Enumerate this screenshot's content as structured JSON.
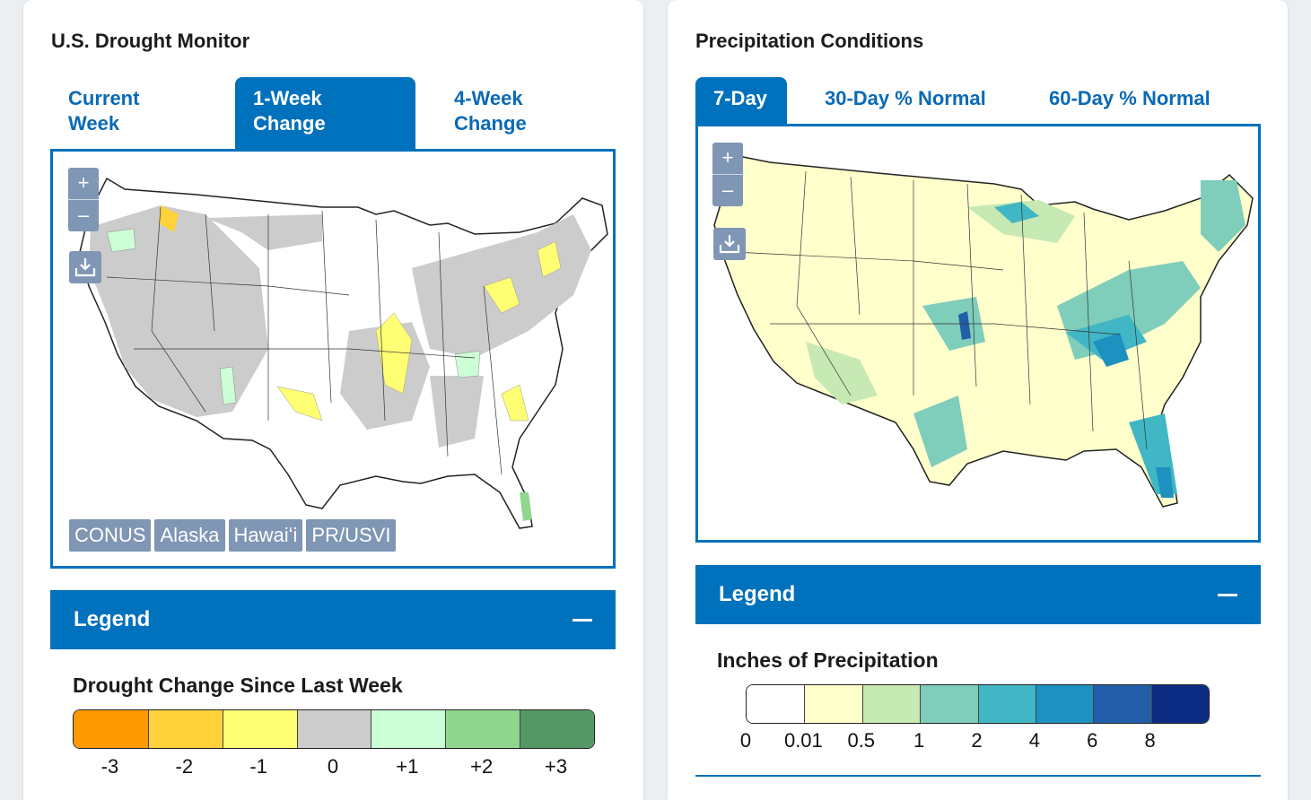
{
  "drought": {
    "title": "U.S. Drought Monitor",
    "tabs": [
      {
        "label_line1": "Current",
        "label_line2": "Week",
        "active": false
      },
      {
        "label_line1": "1-Week",
        "label_line2": "Change",
        "active": true
      },
      {
        "label_line1": "4-Week",
        "label_line2": "Change",
        "active": false
      }
    ],
    "zoom_in": "+",
    "zoom_out": "–",
    "regions": [
      "CONUS",
      "Alaska",
      "Hawaiʻi",
      "PR/USVI"
    ],
    "legend": {
      "header": "Legend",
      "subtitle": "Drought Change Since Last Week",
      "swatches": [
        {
          "label": "-3",
          "color": "#ff9900"
        },
        {
          "label": "-2",
          "color": "#ffd13b"
        },
        {
          "label": "-1",
          "color": "#ffff73"
        },
        {
          "label": "0",
          "color": "#cccccc"
        },
        {
          "label": "+1",
          "color": "#ccffd6"
        },
        {
          "label": "+2",
          "color": "#8fd68f"
        },
        {
          "label": "+3",
          "color": "#549966"
        }
      ]
    }
  },
  "precip": {
    "title": "Precipitation Conditions",
    "tabs": [
      {
        "label": "7-Day",
        "active": true
      },
      {
        "label": "30-Day % Normal",
        "active": false
      },
      {
        "label": "60-Day % Normal",
        "active": false
      }
    ],
    "zoom_in": "+",
    "zoom_out": "–",
    "legend": {
      "header": "Legend",
      "subtitle": "Inches of Precipitation",
      "swatches": [
        "#ffffff",
        "#ffffcc",
        "#c7e9b4",
        "#7fcdbb",
        "#41b6c4",
        "#1d91c0",
        "#225ea8",
        "#0c2c84"
      ],
      "labels": [
        "0",
        "0.01",
        "0.5",
        "1",
        "2",
        "4",
        "6",
        "8"
      ]
    }
  },
  "icons": {
    "download": "download-icon",
    "collapse": "minus-icon"
  },
  "colors": {
    "primary": "#0071bc",
    "tab_text": "#0a6ab5",
    "control_bg": "#7f96b4"
  }
}
